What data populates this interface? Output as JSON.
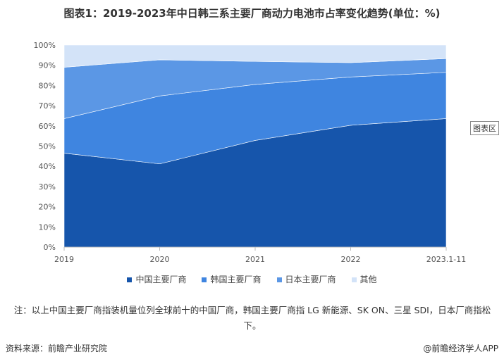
{
  "chart_data": {
    "type": "area",
    "stacked": true,
    "title": "图表1：2019-2023年中日韩三系主要厂商动力电池市占率变化趋势(单位：%)",
    "categories": [
      "2019",
      "2020",
      "2021",
      "2022",
      "2023.1-11"
    ],
    "series": [
      {
        "name": "中国主要厂商",
        "values": [
          46.5,
          41.2,
          52.8,
          60.3,
          63.6
        ],
        "color": "#1655AB"
      },
      {
        "name": "韩国主要厂商",
        "values": [
          17.1,
          33.6,
          27.7,
          23.9,
          22.9
        ],
        "color": "#3F85E0"
      },
      {
        "name": "日本主要厂商",
        "values": [
          25.4,
          17.9,
          11.4,
          7.1,
          6.8
        ],
        "color": "#5B97E5"
      },
      {
        "name": "其他",
        "values": [
          11.0,
          7.3,
          8.1,
          8.7,
          6.7
        ],
        "color": "#D3E3F8"
      }
    ],
    "yticks": [
      "0%",
      "10%",
      "20%",
      "30%",
      "40%",
      "50%",
      "60%",
      "70%",
      "80%",
      "90%",
      "100%"
    ],
    "ylim": [
      0,
      100
    ],
    "legend_position": "bottom"
  },
  "chart_area_label": "图表区",
  "note": "注：以上中国主要厂商指装机量位列全球前十的中国厂商，韩国主要厂商指 LG 新能源、SK ON、三星 SDI，日本厂商指松下。",
  "source": "资料来源：前瞻产业研究院",
  "brand": "@前瞻经济学人APP"
}
